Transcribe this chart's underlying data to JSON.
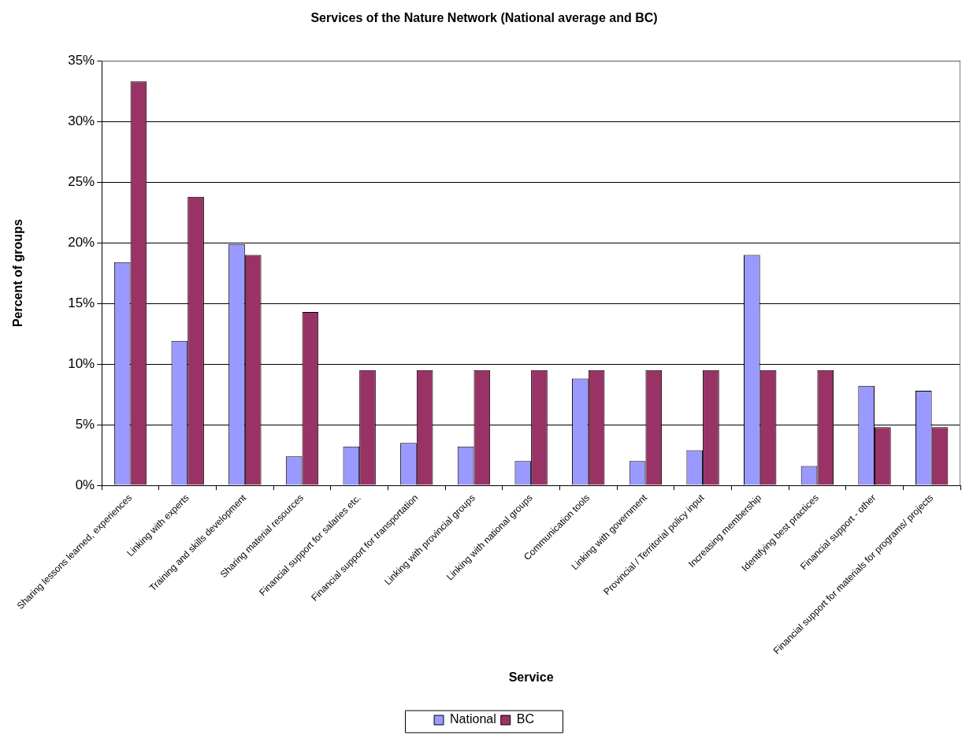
{
  "chart_data": {
    "type": "bar",
    "title": "Services of the Nature Network (National average and BC)",
    "xlabel": "Service",
    "ylabel": "Percent of groups",
    "categories": [
      "Sharing lessons learned, experiences",
      "Linking with experts",
      "Training and skills development",
      "Sharing material resources",
      "Financial support for salaries etc.",
      "Financial support for transportation",
      "Linking with provincial groups",
      "Linking with national groups",
      "Communication tools",
      "Linking with government",
      "Provincial / Territorial policy input",
      "Increasing membership",
      "Identifying best practices",
      "Financial support - other",
      "Financial support for materials for programs/ projects"
    ],
    "series": [
      {
        "name": "National",
        "color": "#9999ff",
        "values": [
          18.4,
          11.9,
          19.9,
          2.4,
          3.2,
          3.5,
          3.2,
          2.0,
          8.8,
          2.0,
          2.9,
          19.0,
          1.6,
          8.2,
          7.8
        ]
      },
      {
        "name": "BC",
        "color": "#993366",
        "values": [
          33.3,
          23.8,
          19.0,
          14.3,
          9.5,
          9.5,
          9.5,
          9.5,
          9.5,
          9.5,
          9.5,
          9.5,
          9.5,
          4.8,
          4.8
        ]
      }
    ],
    "ylim": [
      0,
      35
    ],
    "yticks": [
      {
        "value": 0,
        "label": "0%"
      },
      {
        "value": 5,
        "label": "5%"
      },
      {
        "value": 10,
        "label": "10%"
      },
      {
        "value": 15,
        "label": "15%"
      },
      {
        "value": 20,
        "label": "20%"
      },
      {
        "value": 25,
        "label": "25%"
      },
      {
        "value": 30,
        "label": "30%"
      },
      {
        "value": 35,
        "label": "35%"
      }
    ],
    "grid": "y",
    "legend": "bottom"
  }
}
